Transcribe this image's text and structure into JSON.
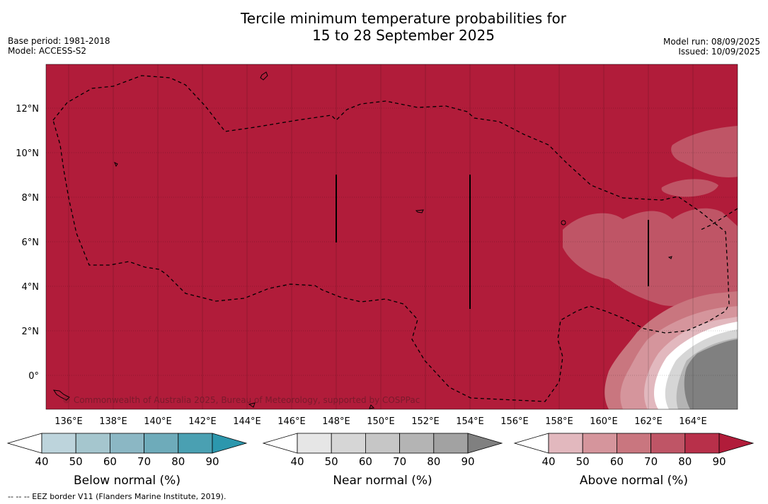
{
  "title_line1": "Tercile minimum temperature probabilities for",
  "title_line2": "15 to 28 September 2025",
  "base_period": "Base period: 1981-2018",
  "model": "Model: ACCESS-S2",
  "model_run": "Model run: 08/09/2025",
  "issued": "Issued: 10/09/2025",
  "copyright": "© Commonwealth of Australia 2025, Bureau of Meteorology, supported by COSPPac",
  "lon_labels": [
    "136°E",
    "138°E",
    "140°E",
    "142°E",
    "144°E",
    "146°E",
    "148°E",
    "150°E",
    "152°E",
    "154°E",
    "156°E",
    "158°E",
    "160°E",
    "162°E",
    "164°E"
  ],
  "lat_labels": [
    "12°N",
    "10°N",
    "8°N",
    "6°N",
    "4°N",
    "2°N",
    "0°"
  ],
  "legends": [
    {
      "title": "Below normal (%)",
      "ticks": [
        "40",
        "50",
        "60",
        "70",
        "80",
        "90"
      ],
      "colors": [
        "#ffffff",
        "#bdd4dc",
        "#a5c6ce",
        "#8bb7c4",
        "#6eabba",
        "#4aa0b2",
        "#2c97ad"
      ]
    },
    {
      "title": "Near normal (%)",
      "ticks": [
        "40",
        "50",
        "60",
        "70",
        "80",
        "90"
      ],
      "colors": [
        "#ffffff",
        "#e6e6e6",
        "#d6d6d6",
        "#c6c6c6",
        "#b4b4b4",
        "#a2a2a2",
        "#808080"
      ]
    },
    {
      "title": "Above normal (%)",
      "ticks": [
        "40",
        "50",
        "60",
        "70",
        "80",
        "90"
      ],
      "colors": [
        "#ffffff",
        "#e2b8be",
        "#d5959c",
        "#c9767f",
        "#bf5566",
        "#b8304a",
        "#b11c3a"
      ]
    }
  ],
  "footer": "--  --  -- EEZ border V11 (Flanders Marine Institute, 2019).",
  "map_colors": {
    "above_90": "#b11c3a",
    "above_80": "#b8304a",
    "above_70": "#bf5566",
    "above_60": "#c9767f",
    "above_50": "#d5959c",
    "near_50": "#d6d6d6",
    "near_70": "#b4b4b4",
    "near_90": "#808080"
  }
}
